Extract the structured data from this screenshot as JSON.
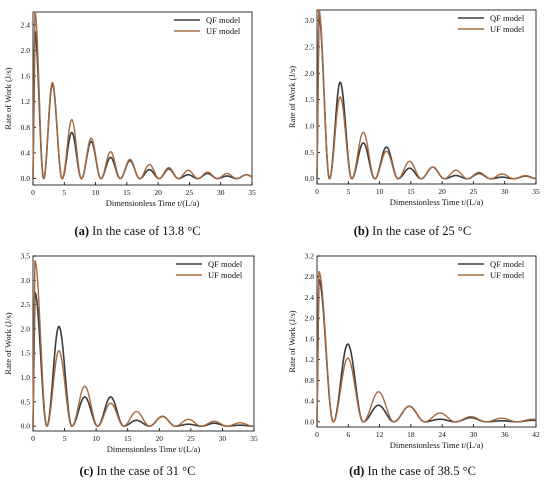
{
  "figure": {
    "panels": [
      {
        "tag": "(a)",
        "caption": "In the case of 13.8 °C"
      },
      {
        "tag": "(b)",
        "caption": "In the case of 25 °C"
      },
      {
        "tag": "(c)",
        "caption": "In the case of 31 °C"
      },
      {
        "tag": "(d)",
        "caption": "In the case of 38.5 °C"
      }
    ]
  },
  "colors": {
    "qf": "#3c3c3c",
    "uf": "#a86a3e",
    "axis": "#000000"
  },
  "chart_data": [
    {
      "type": "line",
      "xlabel": "Dimensionless Time  t/(L/a)",
      "ylabel": "Rate of Work  (J/s)",
      "xlim": [
        0,
        35
      ],
      "ylim": [
        -0.1,
        2.6
      ],
      "xticks": [
        0,
        5,
        10,
        15,
        20,
        25,
        30,
        35
      ],
      "yticks": [
        0.0,
        0.4,
        0.8,
        1.2,
        1.6,
        2.0,
        2.4
      ],
      "yformat": 1,
      "legend": "top-right",
      "series": [
        {
          "name": "QF model",
          "peaks": [
            [
              0.3,
              2.3
            ],
            [
              3.1,
              1.47
            ],
            [
              6.2,
              0.72
            ],
            [
              9.3,
              0.58
            ],
            [
              12.4,
              0.33
            ],
            [
              15.5,
              0.28
            ],
            [
              18.6,
              0.14
            ],
            [
              21.7,
              0.15
            ],
            [
              24.8,
              0.06
            ],
            [
              27.9,
              0.08
            ],
            [
              31.0,
              0.04
            ],
            [
              34.1,
              0.06
            ]
          ]
        },
        {
          "name": "UF model",
          "peaks": [
            [
              0.3,
              2.6
            ],
            [
              3.1,
              1.5
            ],
            [
              6.2,
              0.92
            ],
            [
              9.3,
              0.63
            ],
            [
              12.4,
              0.42
            ],
            [
              15.5,
              0.3
            ],
            [
              18.6,
              0.22
            ],
            [
              21.7,
              0.17
            ],
            [
              24.8,
              0.13
            ],
            [
              27.9,
              0.1
            ],
            [
              31.0,
              0.08
            ],
            [
              34.1,
              0.06
            ]
          ]
        }
      ]
    },
    {
      "type": "line",
      "xlabel": "Dimensionless Time  t/(L/a)",
      "ylabel": "Rate of Work  (J/s)",
      "xlim": [
        0,
        35
      ],
      "ylim": [
        -0.1,
        3.2
      ],
      "xticks": [
        0,
        5,
        10,
        15,
        20,
        25,
        30,
        35
      ],
      "yticks": [
        0.0,
        0.5,
        1.0,
        1.5,
        2.0,
        2.5,
        3.0
      ],
      "yformat": 1,
      "legend": "top-right",
      "series": [
        {
          "name": "QF model",
          "peaks": [
            [
              0.3,
              3.1
            ],
            [
              3.7,
              1.83
            ],
            [
              7.4,
              0.68
            ],
            [
              11.1,
              0.6
            ],
            [
              14.8,
              0.2
            ],
            [
              18.5,
              0.22
            ],
            [
              22.2,
              0.06
            ],
            [
              25.9,
              0.1
            ],
            [
              29.6,
              0.03
            ],
            [
              33.3,
              0.05
            ]
          ]
        },
        {
          "name": "UF model",
          "peaks": [
            [
              0.3,
              3.2
            ],
            [
              3.7,
              1.55
            ],
            [
              7.4,
              0.88
            ],
            [
              11.1,
              0.52
            ],
            [
              14.8,
              0.33
            ],
            [
              18.5,
              0.22
            ],
            [
              22.2,
              0.16
            ],
            [
              25.9,
              0.12
            ],
            [
              29.6,
              0.09
            ],
            [
              33.3,
              0.06
            ]
          ]
        }
      ]
    },
    {
      "type": "line",
      "xlabel": "Dimensionless Time  t/(L/a)",
      "ylabel": "Rate of Work  (J/s)",
      "xlim": [
        0,
        35
      ],
      "ylim": [
        -0.1,
        3.5
      ],
      "xticks": [
        0,
        5,
        10,
        15,
        20,
        25,
        30,
        35
      ],
      "yticks": [
        0.0,
        0.5,
        1.0,
        1.5,
        2.0,
        2.5,
        3.0,
        3.5
      ],
      "yformat": 1,
      "legend": "top-right",
      "series": [
        {
          "name": "QF model",
          "peaks": [
            [
              0.3,
              2.75
            ],
            [
              4.1,
              2.05
            ],
            [
              8.2,
              0.6
            ],
            [
              12.3,
              0.6
            ],
            [
              16.4,
              0.12
            ],
            [
              20.5,
              0.2
            ],
            [
              24.6,
              0.04
            ],
            [
              28.7,
              0.06
            ],
            [
              32.8,
              0.02
            ]
          ]
        },
        {
          "name": "UF model",
          "peaks": [
            [
              0.3,
              3.4
            ],
            [
              4.1,
              1.55
            ],
            [
              8.2,
              0.82
            ],
            [
              12.3,
              0.47
            ],
            [
              16.4,
              0.3
            ],
            [
              20.5,
              0.2
            ],
            [
              24.6,
              0.14
            ],
            [
              28.7,
              0.1
            ],
            [
              32.8,
              0.07
            ]
          ]
        }
      ]
    },
    {
      "type": "line",
      "xlabel": "Dimensionless Time  t/(L/a)",
      "ylabel": "Rate of Work  (J/s)",
      "xlim": [
        0,
        42
      ],
      "ylim": [
        -0.1,
        3.2
      ],
      "xticks": [
        0,
        6,
        12,
        18,
        24,
        30,
        36,
        42
      ],
      "yticks": [
        0.0,
        0.4,
        0.8,
        1.2,
        1.6,
        2.0,
        2.4,
        2.8,
        3.2
      ],
      "yformat": 1,
      "legend": "top-right",
      "series": [
        {
          "name": "QF model",
          "peaks": [
            [
              0.35,
              2.75
            ],
            [
              5.9,
              1.5
            ],
            [
              11.8,
              0.32
            ],
            [
              17.7,
              0.3
            ],
            [
              23.6,
              0.05
            ],
            [
              29.5,
              0.08
            ],
            [
              35.4,
              0.02
            ],
            [
              41.3,
              0.03
            ]
          ]
        },
        {
          "name": "UF model",
          "peaks": [
            [
              0.35,
              2.9
            ],
            [
              5.9,
              1.23
            ],
            [
              11.8,
              0.58
            ],
            [
              17.7,
              0.3
            ],
            [
              23.6,
              0.17
            ],
            [
              29.5,
              0.1
            ],
            [
              35.4,
              0.07
            ],
            [
              41.3,
              0.05
            ]
          ]
        }
      ]
    }
  ]
}
